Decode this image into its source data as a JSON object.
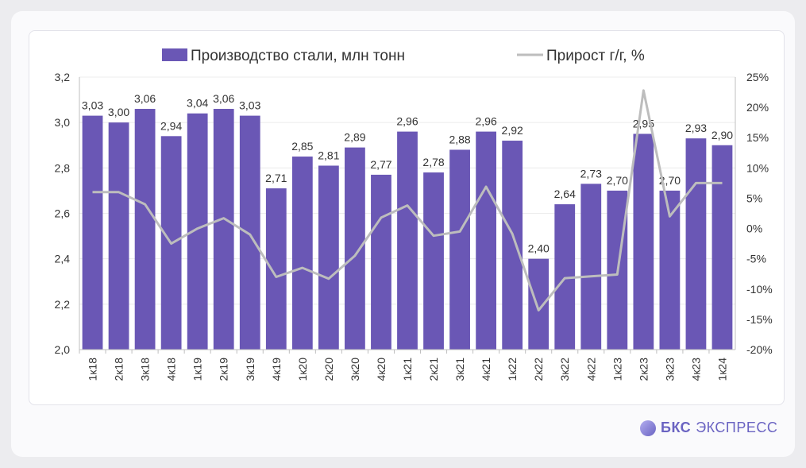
{
  "chart_data": {
    "type": "bar+line",
    "categories": [
      "1к18",
      "2к18",
      "3к18",
      "4к18",
      "1к19",
      "2к19",
      "3к19",
      "4к19",
      "1к20",
      "2к20",
      "3к20",
      "4к20",
      "1к21",
      "2к21",
      "3к21",
      "4к21",
      "1к22",
      "2к22",
      "3к22",
      "4к22",
      "1к23",
      "2к23",
      "3к23",
      "4к23",
      "1к24"
    ],
    "series": [
      {
        "name": "Производство стали, млн тонн",
        "type": "bar",
        "axis": "left",
        "values": [
          3.03,
          3.0,
          3.06,
          2.94,
          3.04,
          3.06,
          3.03,
          2.71,
          2.85,
          2.81,
          2.89,
          2.77,
          2.96,
          2.78,
          2.88,
          2.96,
          2.92,
          2.4,
          2.64,
          2.73,
          2.7,
          2.95,
          2.7,
          2.93,
          2.9
        ],
        "labels": [
          "3,03",
          "3,00",
          "3,06",
          "2,94",
          "3,04",
          "3,06",
          "3,03",
          "2,71",
          "2,85",
          "2,81",
          "2,89",
          "2,77",
          "2,96",
          "2,78",
          "2,88",
          "2,96",
          "2,92",
          "2,40",
          "2,64",
          "2,73",
          "2,70",
          "2,95",
          "2,70",
          "2,93",
          "2,90"
        ]
      },
      {
        "name": "Прирост г/г, %",
        "type": "line",
        "axis": "right",
        "values": [
          6,
          6,
          4,
          -2.5,
          0,
          1.7,
          -1,
          -8,
          -6.5,
          -8.3,
          -4.5,
          1.8,
          3.8,
          -1.2,
          -0.5,
          6.9,
          -0.9,
          -13.5,
          -8.2,
          -7.9,
          -7.6,
          22.8,
          2,
          7.5,
          7.5
        ]
      }
    ],
    "ylim_left": [
      2.0,
      3.2
    ],
    "yticks_left": [
      "2,0",
      "2,2",
      "2,4",
      "2,6",
      "2,8",
      "3,0",
      "3,2"
    ],
    "ylim_right": [
      -20,
      25
    ],
    "yticks_right": [
      "-20%",
      "-15%",
      "-10%",
      "-5%",
      "0%",
      "5%",
      "10%",
      "15%",
      "20%",
      "25%"
    ],
    "legend_position": "top-center",
    "colors": {
      "bar": "#6a57b5",
      "line": "#bdbdbd"
    }
  },
  "brand": {
    "bold": "БКС",
    "rest": "ЭКСПРЕСС"
  }
}
